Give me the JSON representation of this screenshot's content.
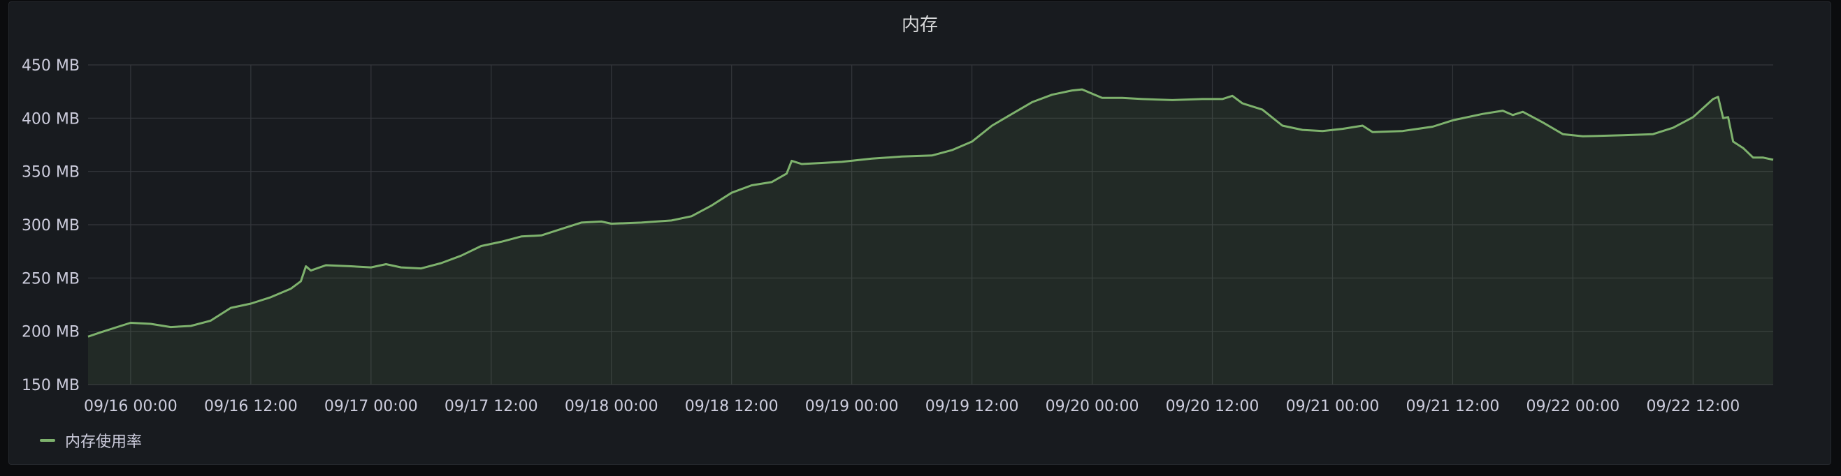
{
  "panel": {
    "title": "内存"
  },
  "colors": {
    "series": "#7eb26d",
    "fill": "rgba(126,178,109,0.10)",
    "grid": "#34373c",
    "text": "#ccccdc",
    "background": "#181b1f"
  },
  "chart_data": {
    "type": "area",
    "title": "内存",
    "xlabel": "",
    "ylabel": "",
    "y_unit": "MB",
    "ylim": [
      150,
      450
    ],
    "xlim": [
      "09/15 19:45",
      "09/22 20:00"
    ],
    "grid": true,
    "legend_position": "bottom-left",
    "y_ticks": [
      "150 MB",
      "200 MB",
      "250 MB",
      "300 MB",
      "350 MB",
      "400 MB",
      "450 MB"
    ],
    "x_ticks": [
      "09/16 00:00",
      "09/16 12:00",
      "09/17 00:00",
      "09/17 12:00",
      "09/18 00:00",
      "09/18 12:00",
      "09/19 00:00",
      "09/19 12:00",
      "09/20 00:00",
      "09/20 12:00",
      "09/21 00:00",
      "09/21 12:00",
      "09/22 00:00",
      "09/22 12:00"
    ],
    "series": [
      {
        "name": "内存使用率",
        "points": [
          [
            "09/15 19:45",
            195
          ],
          [
            "09/15 21:00",
            199
          ],
          [
            "09/15 23:00",
            205
          ],
          [
            "09/16 00:00",
            208
          ],
          [
            "09/16 02:00",
            207
          ],
          [
            "09/16 04:00",
            204
          ],
          [
            "09/16 06:00",
            205
          ],
          [
            "09/16 08:00",
            210
          ],
          [
            "09/16 10:00",
            222
          ],
          [
            "09/16 12:00",
            226
          ],
          [
            "09/16 14:00",
            232
          ],
          [
            "09/16 16:00",
            240
          ],
          [
            "09/16 17:00",
            247
          ],
          [
            "09/16 17:30",
            261
          ],
          [
            "09/16 18:00",
            257
          ],
          [
            "09/16 19:30",
            262
          ],
          [
            "09/16 22:00",
            261
          ],
          [
            "09/17 00:00",
            260
          ],
          [
            "09/17 01:30",
            263
          ],
          [
            "09/17 03:00",
            260
          ],
          [
            "09/17 05:00",
            259
          ],
          [
            "09/17 07:00",
            264
          ],
          [
            "09/17 09:00",
            271
          ],
          [
            "09/17 11:00",
            280
          ],
          [
            "09/17 13:00",
            284
          ],
          [
            "09/17 15:00",
            289
          ],
          [
            "09/17 17:00",
            290
          ],
          [
            "09/17 19:00",
            296
          ],
          [
            "09/17 21:00",
            302
          ],
          [
            "09/17 23:00",
            303
          ],
          [
            "09/18 00:00",
            301
          ],
          [
            "09/18 03:00",
            302
          ],
          [
            "09/18 06:00",
            304
          ],
          [
            "09/18 08:00",
            308
          ],
          [
            "09/18 10:00",
            318
          ],
          [
            "09/18 12:00",
            330
          ],
          [
            "09/18 14:00",
            337
          ],
          [
            "09/18 16:00",
            340
          ],
          [
            "09/18 17:30",
            348
          ],
          [
            "09/18 18:00",
            360
          ],
          [
            "09/18 19:00",
            357
          ],
          [
            "09/18 21:00",
            358
          ],
          [
            "09/18 23:00",
            359
          ],
          [
            "09/19 02:00",
            362
          ],
          [
            "09/19 05:00",
            364
          ],
          [
            "09/19 08:00",
            365
          ],
          [
            "09/19 10:00",
            370
          ],
          [
            "09/19 12:00",
            378
          ],
          [
            "09/19 14:00",
            393
          ],
          [
            "09/19 16:00",
            404
          ],
          [
            "09/19 18:00",
            415
          ],
          [
            "09/19 20:00",
            422
          ],
          [
            "09/19 22:00",
            426
          ],
          [
            "09/19 23:00",
            427
          ],
          [
            "09/20 00:00",
            423
          ],
          [
            "09/20 01:00",
            419
          ],
          [
            "09/20 03:00",
            419
          ],
          [
            "09/20 05:00",
            418
          ],
          [
            "09/20 08:00",
            417
          ],
          [
            "09/20 11:00",
            418
          ],
          [
            "09/20 13:00",
            418
          ],
          [
            "09/20 14:00",
            421
          ],
          [
            "09/20 15:00",
            414
          ],
          [
            "09/20 17:00",
            408
          ],
          [
            "09/20 19:00",
            393
          ],
          [
            "09/20 21:00",
            389
          ],
          [
            "09/20 23:00",
            388
          ],
          [
            "09/21 01:00",
            390
          ],
          [
            "09/21 03:00",
            393
          ],
          [
            "09/21 04:00",
            387
          ],
          [
            "09/21 07:00",
            388
          ],
          [
            "09/21 10:00",
            392
          ],
          [
            "09/21 12:00",
            398
          ],
          [
            "09/21 15:00",
            404
          ],
          [
            "09/21 17:00",
            407
          ],
          [
            "09/21 18:00",
            403
          ],
          [
            "09/21 19:00",
            406
          ],
          [
            "09/21 21:00",
            396
          ],
          [
            "09/21 23:00",
            385
          ],
          [
            "09/22 01:00",
            383
          ],
          [
            "09/22 05:00",
            384
          ],
          [
            "09/22 08:00",
            385
          ],
          [
            "09/22 10:00",
            391
          ],
          [
            "09/22 12:00",
            401
          ],
          [
            "09/22 14:00",
            418
          ],
          [
            "09/22 14:30",
            420
          ],
          [
            "09/22 15:00",
            400
          ],
          [
            "09/22 15:30",
            401
          ],
          [
            "09/22 16:00",
            378
          ],
          [
            "09/22 17:00",
            372
          ],
          [
            "09/22 18:00",
            363
          ],
          [
            "09/22 19:00",
            363
          ],
          [
            "09/22 20:00",
            361
          ]
        ]
      }
    ]
  }
}
